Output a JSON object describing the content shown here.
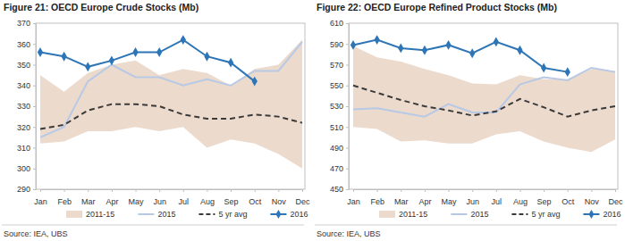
{
  "chart_data": [
    {
      "type": "line",
      "title": "Figure 21: OECD Europe Crude Stocks (Mb)",
      "source": "Source:  IEA, UBS",
      "categories": [
        "Jan",
        "Feb",
        "Mar",
        "Apr",
        "May",
        "Jun",
        "Jul",
        "Aug",
        "Sep",
        "Oct",
        "Nov",
        "Dec"
      ],
      "series": [
        {
          "name": "2011-15",
          "type": "area",
          "color": "#ecdacd",
          "values": [
            345,
            337,
            346,
            350,
            352,
            345,
            348,
            346,
            340,
            348,
            350,
            362
          ],
          "low": [
            312,
            313,
            318,
            318,
            320,
            318,
            320,
            310,
            314,
            312,
            307,
            300
          ]
        },
        {
          "name": "2015",
          "type": "line",
          "color": "#b7c9e5",
          "line_style": "solid",
          "values": [
            315,
            320,
            342,
            350,
            344,
            344,
            340,
            343,
            340,
            347,
            347,
            361
          ]
        },
        {
          "name": "5 yr avg",
          "type": "line",
          "color": "#3a3a3a",
          "line_style": "dashed",
          "values": [
            319,
            321,
            328,
            331,
            331,
            330,
            326,
            324,
            324,
            326,
            325,
            322
          ]
        },
        {
          "name": "2016",
          "type": "line",
          "color": "#2e75b6",
          "line_style": "solid",
          "marker": "diamond",
          "values": [
            356,
            354,
            349,
            352,
            356,
            356,
            362,
            354,
            351,
            342,
            null,
            null
          ]
        }
      ],
      "ylim": [
        290,
        370
      ],
      "yticks": [
        290,
        300,
        310,
        320,
        330,
        340,
        350,
        360,
        370
      ],
      "grid": false,
      "legend": "bottom"
    },
    {
      "type": "line",
      "title": "Figure 22: OECD Europe Refined Product Stocks (Mb)",
      "source": "Source:  IEA, UBS",
      "categories": [
        "Jan",
        "Feb",
        "Mar",
        "Apr",
        "May",
        "Jun",
        "Jul",
        "Aug",
        "Sep",
        "Oct",
        "Nov",
        "Dec"
      ],
      "series": [
        {
          "name": "2011-15",
          "type": "area",
          "color": "#ecdacd",
          "values": [
            588,
            577,
            573,
            566,
            560,
            552,
            551,
            560,
            556,
            556,
            566,
            564
          ],
          "low": [
            510,
            508,
            496,
            497,
            494,
            494,
            503,
            506,
            496,
            490,
            486,
            498
          ]
        },
        {
          "name": "2015",
          "type": "line",
          "color": "#b7c9e5",
          "line_style": "solid",
          "values": [
            527,
            528,
            524,
            520,
            532,
            524,
            524,
            551,
            558,
            555,
            567,
            563
          ]
        },
        {
          "name": "5 yr avg",
          "type": "line",
          "color": "#3a3a3a",
          "line_style": "dashed",
          "values": [
            550,
            543,
            536,
            530,
            526,
            521,
            525,
            537,
            529,
            520,
            526,
            530
          ]
        },
        {
          "name": "2016",
          "type": "line",
          "color": "#2e75b6",
          "line_style": "solid",
          "marker": "diamond",
          "values": [
            589,
            594,
            586,
            584,
            589,
            581,
            592,
            584,
            567,
            563,
            null,
            null
          ]
        }
      ],
      "ylim": [
        450,
        610
      ],
      "yticks": [
        450,
        470,
        490,
        510,
        530,
        550,
        570,
        590,
        610
      ],
      "grid": false,
      "legend": "bottom"
    }
  ]
}
